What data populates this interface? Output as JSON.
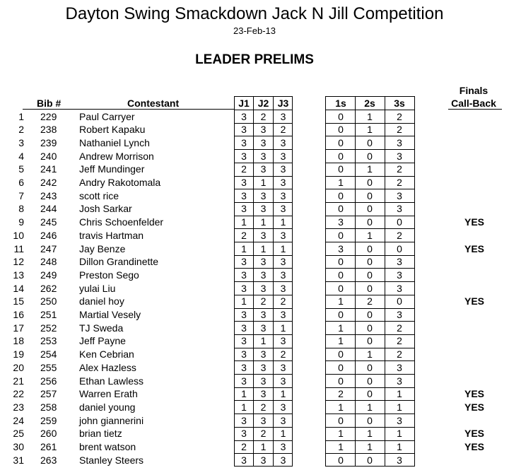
{
  "title": "Dayton Swing Smackdown Jack N Jill Competition",
  "date": "23-Feb-13",
  "section": "LEADER PRELIMS",
  "headers": {
    "bib": "Bib #",
    "contestant": "Contestant",
    "j1": "J1",
    "j2": "J2",
    "j3": "J3",
    "s1": "1s",
    "s2": "2s",
    "s3": "3s",
    "finals": "Finals",
    "callback": "Call-Back"
  },
  "rows": [
    {
      "num": "1",
      "bib": "229",
      "name": "Paul Carryer",
      "j1": "3",
      "j2": "2",
      "j3": "3",
      "s1": "0",
      "s2": "1",
      "s3": "2",
      "callback": ""
    },
    {
      "num": "2",
      "bib": "238",
      "name": "Robert Kapaku",
      "j1": "3",
      "j2": "3",
      "j3": "2",
      "s1": "0",
      "s2": "1",
      "s3": "2",
      "callback": ""
    },
    {
      "num": "3",
      "bib": "239",
      "name": "Nathaniel Lynch",
      "j1": "3",
      "j2": "3",
      "j3": "3",
      "s1": "0",
      "s2": "0",
      "s3": "3",
      "callback": ""
    },
    {
      "num": "4",
      "bib": "240",
      "name": "Andrew Morrison",
      "j1": "3",
      "j2": "3",
      "j3": "3",
      "s1": "0",
      "s2": "0",
      "s3": "3",
      "callback": ""
    },
    {
      "num": "5",
      "bib": "241",
      "name": "Jeff Mundinger",
      "j1": "2",
      "j2": "3",
      "j3": "3",
      "s1": "0",
      "s2": "1",
      "s3": "2",
      "callback": ""
    },
    {
      "num": "6",
      "bib": "242",
      "name": "Andry Rakotomala",
      "j1": "3",
      "j2": "1",
      "j3": "3",
      "s1": "1",
      "s2": "0",
      "s3": "2",
      "callback": ""
    },
    {
      "num": "7",
      "bib": "243",
      "name": "scott rice",
      "j1": "3",
      "j2": "3",
      "j3": "3",
      "s1": "0",
      "s2": "0",
      "s3": "3",
      "callback": ""
    },
    {
      "num": "8",
      "bib": "244",
      "name": "Josh Sarkar",
      "j1": "3",
      "j2": "3",
      "j3": "3",
      "s1": "0",
      "s2": "0",
      "s3": "3",
      "callback": ""
    },
    {
      "num": "9",
      "bib": "245",
      "name": "Chris Schoenfelder",
      "j1": "1",
      "j2": "1",
      "j3": "1",
      "s1": "3",
      "s2": "0",
      "s3": "0",
      "callback": "YES"
    },
    {
      "num": "10",
      "bib": "246",
      "name": "travis Hartman",
      "j1": "2",
      "j2": "3",
      "j3": "3",
      "s1": "0",
      "s2": "1",
      "s3": "2",
      "callback": ""
    },
    {
      "num": "11",
      "bib": "247",
      "name": "Jay Benze",
      "j1": "1",
      "j2": "1",
      "j3": "1",
      "s1": "3",
      "s2": "0",
      "s3": "0",
      "callback": "YES"
    },
    {
      "num": "12",
      "bib": "248",
      "name": "Dillon Grandinette",
      "j1": "3",
      "j2": "3",
      "j3": "3",
      "s1": "0",
      "s2": "0",
      "s3": "3",
      "callback": ""
    },
    {
      "num": "13",
      "bib": "249",
      "name": "Preston Sego",
      "j1": "3",
      "j2": "3",
      "j3": "3",
      "s1": "0",
      "s2": "0",
      "s3": "3",
      "callback": ""
    },
    {
      "num": "14",
      "bib": "262",
      "name": "yulai Liu",
      "j1": "3",
      "j2": "3",
      "j3": "3",
      "s1": "0",
      "s2": "0",
      "s3": "3",
      "callback": ""
    },
    {
      "num": "15",
      "bib": "250",
      "name": "daniel hoy",
      "j1": "1",
      "j2": "2",
      "j3": "2",
      "s1": "1",
      "s2": "2",
      "s3": "0",
      "callback": "YES"
    },
    {
      "num": "16",
      "bib": "251",
      "name": "Martial Vesely",
      "j1": "3",
      "j2": "3",
      "j3": "3",
      "s1": "0",
      "s2": "0",
      "s3": "3",
      "callback": ""
    },
    {
      "num": "17",
      "bib": "252",
      "name": "TJ Sweda",
      "j1": "3",
      "j2": "3",
      "j3": "1",
      "s1": "1",
      "s2": "0",
      "s3": "2",
      "callback": ""
    },
    {
      "num": "18",
      "bib": "253",
      "name": "Jeff Payne",
      "j1": "3",
      "j2": "1",
      "j3": "3",
      "s1": "1",
      "s2": "0",
      "s3": "2",
      "callback": ""
    },
    {
      "num": "19",
      "bib": "254",
      "name": "Ken Cebrian",
      "j1": "3",
      "j2": "3",
      "j3": "2",
      "s1": "0",
      "s2": "1",
      "s3": "2",
      "callback": ""
    },
    {
      "num": "20",
      "bib": "255",
      "name": "Alex Hazless",
      "j1": "3",
      "j2": "3",
      "j3": "3",
      "s1": "0",
      "s2": "0",
      "s3": "3",
      "callback": ""
    },
    {
      "num": "21",
      "bib": "256",
      "name": "Ethan Lawless",
      "j1": "3",
      "j2": "3",
      "j3": "3",
      "s1": "0",
      "s2": "0",
      "s3": "3",
      "callback": ""
    },
    {
      "num": "22",
      "bib": "257",
      "name": "Warren Erath",
      "j1": "1",
      "j2": "3",
      "j3": "1",
      "s1": "2",
      "s2": "0",
      "s3": "1",
      "callback": "YES"
    },
    {
      "num": "23",
      "bib": "258",
      "name": "daniel young",
      "j1": "1",
      "j2": "2",
      "j3": "3",
      "s1": "1",
      "s2": "1",
      "s3": "1",
      "callback": "YES"
    },
    {
      "num": "24",
      "bib": "259",
      "name": "john giannerini",
      "j1": "3",
      "j2": "3",
      "j3": "3",
      "s1": "0",
      "s2": "0",
      "s3": "3",
      "callback": ""
    },
    {
      "num": "25",
      "bib": "260",
      "name": "brian tietz",
      "j1": "3",
      "j2": "2",
      "j3": "1",
      "s1": "1",
      "s2": "1",
      "s3": "1",
      "callback": "YES"
    },
    {
      "num": "30",
      "bib": "261",
      "name": "brent watson",
      "j1": "2",
      "j2": "1",
      "j3": "3",
      "s1": "1",
      "s2": "1",
      "s3": "1",
      "callback": "YES"
    },
    {
      "num": "31",
      "bib": "263",
      "name": "Stanley Steers",
      "j1": "3",
      "j2": "3",
      "j3": "3",
      "s1": "0",
      "s2": "0",
      "s3": "3",
      "callback": ""
    }
  ]
}
